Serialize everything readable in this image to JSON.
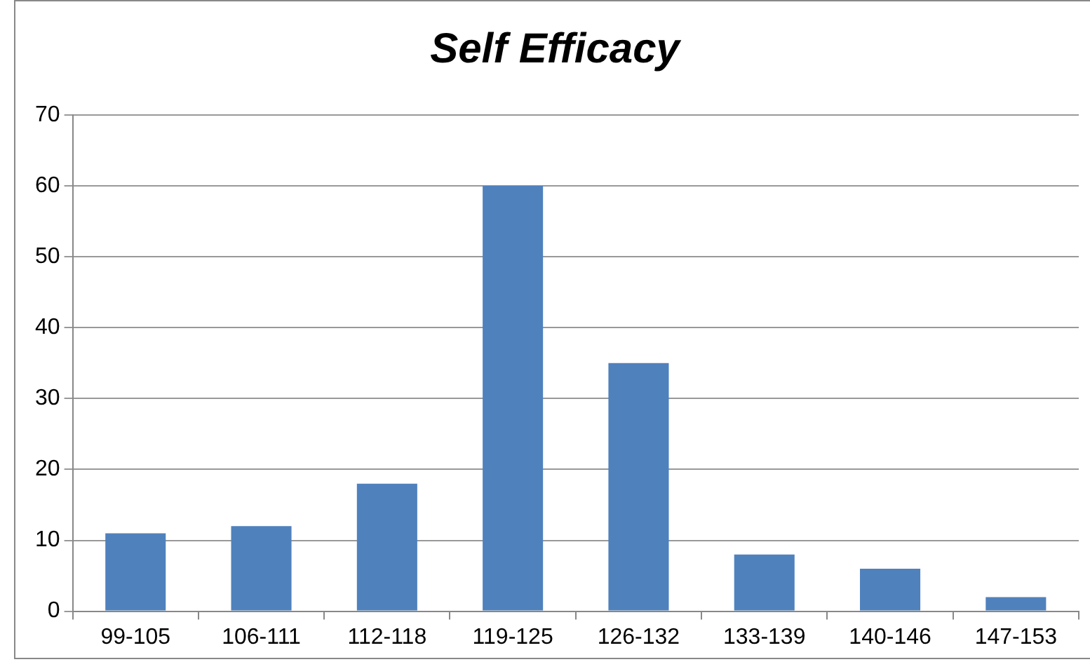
{
  "chart_data": {
    "type": "bar",
    "title": "Self Efficacy",
    "categories": [
      "99-105",
      "106-111",
      "112-118",
      "119-125",
      "126-132",
      "133-139",
      "140-146",
      "147-153"
    ],
    "values": [
      11,
      12,
      18,
      60,
      35,
      8,
      6,
      2
    ],
    "color": "#4f81bd",
    "ylim": [
      0,
      70
    ],
    "yticks": [
      0,
      10,
      20,
      30,
      40,
      50,
      60,
      70
    ],
    "grid": "y"
  }
}
